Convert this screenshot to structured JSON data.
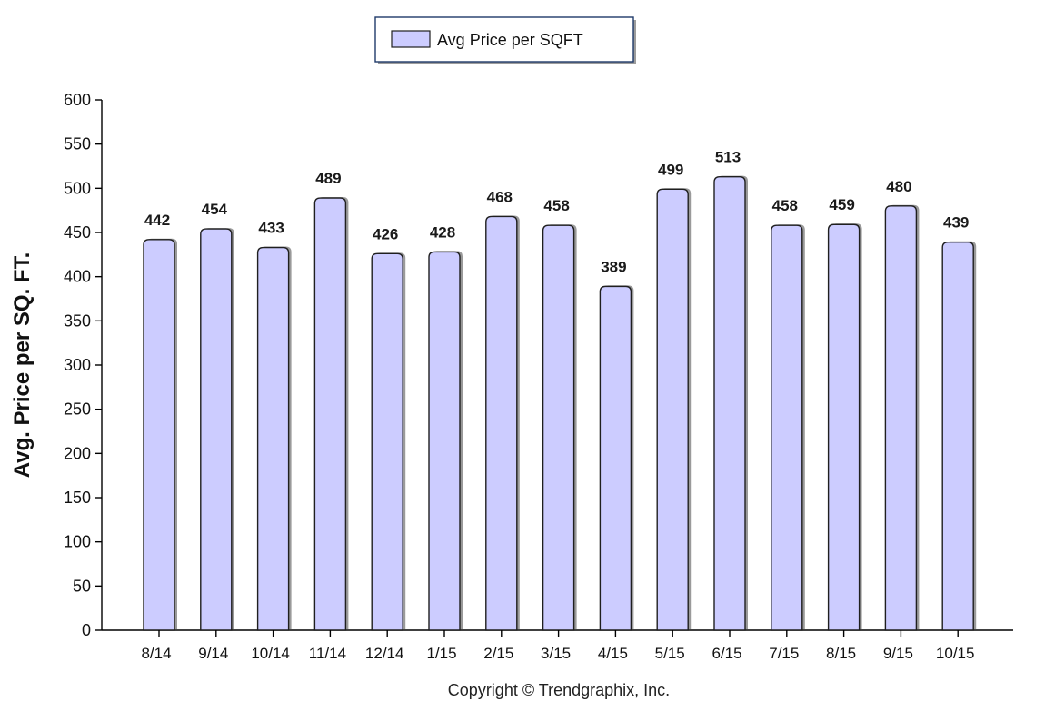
{
  "chart_data": {
    "type": "bar",
    "categories": [
      "8/14",
      "9/14",
      "10/14",
      "11/14",
      "12/14",
      "1/15",
      "2/15",
      "3/15",
      "4/15",
      "5/15",
      "6/15",
      "7/15",
      "8/15",
      "9/15",
      "10/15"
    ],
    "series": [
      {
        "name": "Avg Price per SQFT",
        "values": [
          442,
          454,
          433,
          489,
          426,
          428,
          468,
          458,
          389,
          499,
          513,
          458,
          459,
          480,
          439
        ]
      }
    ],
    "title": "",
    "xlabel": "",
    "ylabel": "Avg. Price per SQ. FT.",
    "ylim": [
      0,
      600
    ],
    "yticks": [
      0,
      50,
      100,
      150,
      200,
      250,
      300,
      350,
      400,
      450,
      500,
      550,
      600
    ],
    "grid": false,
    "legend_position": "top",
    "data_labels": true,
    "colors": {
      "bar_fill": "#ccccff",
      "bar_stroke": "#1f1f1f",
      "bar_shadow": "#9a9a9a"
    }
  },
  "legend": {
    "label": "Avg Price per SQFT"
  },
  "footer": {
    "copyright": "Copyright © Trendgraphix, Inc."
  }
}
